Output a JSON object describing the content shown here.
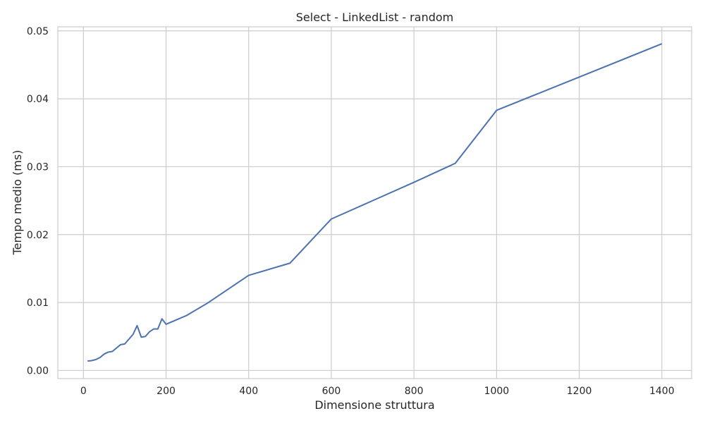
{
  "chart_data": {
    "type": "line",
    "title": "Select - LinkedList - random",
    "xlabel": "Dimensione struttura",
    "ylabel": "Tempo medio (ms)",
    "xlim": [
      -62,
      1472
    ],
    "ylim": [
      -0.0012,
      0.0506
    ],
    "xticks": [
      0,
      200,
      400,
      600,
      800,
      1000,
      1200,
      1400
    ],
    "xtick_labels": [
      "0",
      "200",
      "400",
      "600",
      "800",
      "1000",
      "1200",
      "1400"
    ],
    "yticks": [
      0.0,
      0.01,
      0.02,
      0.03,
      0.04,
      0.05
    ],
    "ytick_labels": [
      "0.00",
      "0.01",
      "0.02",
      "0.03",
      "0.04",
      "0.05"
    ],
    "grid": true,
    "series": [
      {
        "color": "#4c72b0",
        "x": [
          10,
          20,
          30,
          40,
          50,
          60,
          70,
          80,
          90,
          100,
          110,
          120,
          130,
          140,
          150,
          160,
          170,
          180,
          190,
          200,
          250,
          300,
          400,
          500,
          600,
          700,
          800,
          900,
          1000,
          1200,
          1400
        ],
        "y": [
          0.00138,
          0.00145,
          0.0016,
          0.0019,
          0.0024,
          0.0027,
          0.0028,
          0.0033,
          0.0038,
          0.0039,
          0.0046,
          0.0053,
          0.0066,
          0.0049,
          0.005,
          0.0057,
          0.0061,
          0.0061,
          0.0076,
          0.0068,
          0.0081,
          0.0099,
          0.014,
          0.0158,
          0.0223,
          0.025,
          0.0277,
          0.0305,
          0.0383,
          0.0432,
          0.0481
        ]
      }
    ]
  }
}
